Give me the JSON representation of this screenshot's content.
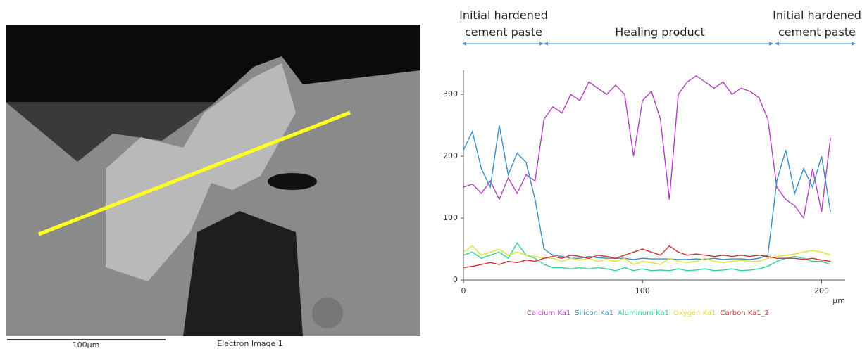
{
  "image": {
    "scale_bar": "100µm",
    "caption": "Electron Image 1"
  },
  "chart_data": {
    "type": "line",
    "annotations": [
      "Initial hardened cement paste",
      "Healing product",
      "Initial hardened cement paste"
    ],
    "x_unit": "µm",
    "x": [
      0,
      5,
      10,
      15,
      20,
      25,
      30,
      35,
      40,
      45,
      50,
      55,
      60,
      65,
      70,
      75,
      80,
      85,
      90,
      95,
      100,
      105,
      110,
      115,
      120,
      125,
      130,
      135,
      140,
      145,
      150,
      155,
      160,
      165,
      170,
      175,
      180,
      185,
      190,
      195,
      200,
      205
    ],
    "xlim": [
      0,
      212
    ],
    "xticks": [
      0,
      100,
      200
    ],
    "ylim": [
      0,
      340
    ],
    "yticks": [
      0,
      100,
      200,
      300
    ],
    "series": [
      {
        "name": "Calcium Ka1",
        "color": "#b040c0",
        "values": [
          150,
          155,
          140,
          160,
          130,
          165,
          140,
          170,
          160,
          260,
          280,
          270,
          300,
          290,
          320,
          310,
          300,
          315,
          300,
          200,
          290,
          305,
          260,
          130,
          300,
          320,
          330,
          320,
          310,
          320,
          300,
          310,
          305,
          295,
          260,
          150,
          130,
          120,
          100,
          180,
          110,
          230
        ]
      },
      {
        "name": "Silicon Ka1",
        "color": "#3a8fc0",
        "values": [
          210,
          240,
          180,
          150,
          250,
          170,
          205,
          190,
          130,
          50,
          40,
          38,
          35,
          35,
          38,
          36,
          35,
          35,
          35,
          33,
          35,
          34,
          34,
          34,
          33,
          33,
          34,
          33,
          35,
          33,
          34,
          34,
          33,
          35,
          40,
          160,
          210,
          140,
          180,
          150,
          200,
          110
        ]
      },
      {
        "name": "Aluminum Ka1",
        "color": "#30d0a0",
        "values": [
          40,
          45,
          35,
          40,
          45,
          35,
          60,
          40,
          35,
          25,
          20,
          20,
          18,
          20,
          18,
          20,
          18,
          15,
          20,
          15,
          18,
          15,
          16,
          15,
          18,
          15,
          16,
          18,
          15,
          16,
          18,
          15,
          16,
          18,
          22,
          30,
          35,
          38,
          35,
          30,
          30,
          25
        ]
      },
      {
        "name": "Oxygen Ka1",
        "color": "#e0e030",
        "values": [
          45,
          55,
          40,
          45,
          50,
          40,
          45,
          40,
          38,
          35,
          35,
          30,
          35,
          32,
          35,
          30,
          33,
          30,
          35,
          25,
          30,
          28,
          25,
          35,
          30,
          28,
          30,
          35,
          30,
          28,
          30,
          32,
          30,
          30,
          35,
          38,
          40,
          42,
          45,
          48,
          45,
          40
        ]
      },
      {
        "name": "Carbon Ka1_2",
        "color": "#d03030",
        "values": [
          20,
          22,
          25,
          28,
          25,
          30,
          28,
          32,
          30,
          35,
          38,
          35,
          40,
          38,
          35,
          40,
          38,
          35,
          40,
          45,
          50,
          45,
          40,
          55,
          45,
          40,
          42,
          40,
          38,
          40,
          38,
          40,
          38,
          40,
          38,
          35,
          35,
          35,
          33,
          35,
          32,
          30
        ]
      }
    ]
  }
}
